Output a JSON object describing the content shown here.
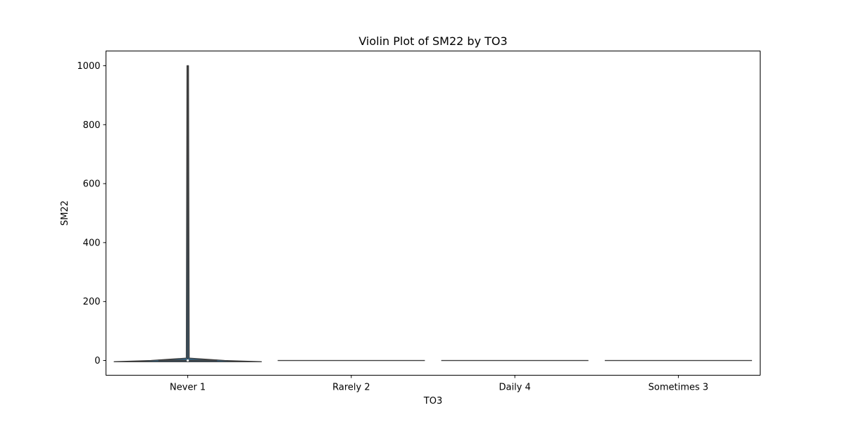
{
  "chart_data": {
    "type": "violin",
    "title": "Violin Plot of SM22 by TO3",
    "xlabel": "TO3",
    "ylabel": "SM22",
    "categories": [
      "Never 1",
      "Rarely 2",
      "Daily 4",
      "Sometimes 3"
    ],
    "ylim": [
      -50,
      1050
    ],
    "yticks": [
      0,
      200,
      400,
      600,
      800,
      1000
    ],
    "grid": false,
    "violins": [
      {
        "category": "Never 1",
        "min": -3,
        "max": 1000,
        "median": 0,
        "q1": -1,
        "q3": 3,
        "max_halfwidth": 0.45
      },
      {
        "category": "Rarely 2",
        "min": 0,
        "max": 0,
        "median": 0,
        "q1": 0,
        "q3": 0,
        "max_halfwidth": 0.45
      },
      {
        "category": "Daily 4",
        "min": 0,
        "max": 0,
        "median": 0,
        "q1": 0,
        "q3": 0,
        "max_halfwidth": 0.45
      },
      {
        "category": "Sometimes 3",
        "min": 0,
        "max": 0,
        "median": 0,
        "q1": 0,
        "q3": 0,
        "max_halfwidth": 0.45
      }
    ],
    "colors": {
      "fill": "#3274a1",
      "edge": "#3f3f3f"
    }
  }
}
